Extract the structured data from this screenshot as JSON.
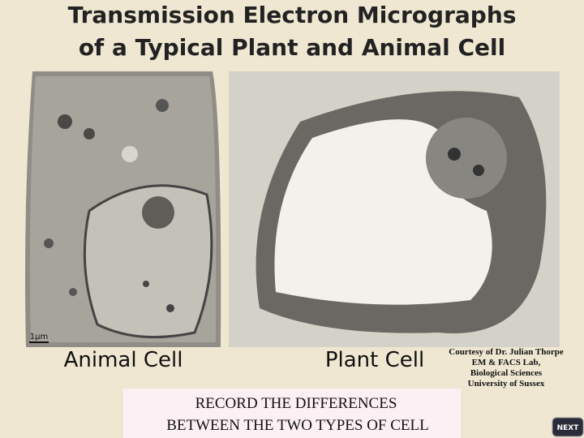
{
  "header": {
    "title_lines": [
      "Transmission Electron Micrographs",
      "of a Typical Plant and Animal Cell"
    ]
  },
  "images": [
    {
      "label": "Animal Cell",
      "scale_bar": "1µm"
    },
    {
      "label": "Plant Cell"
    }
  ],
  "credit": [
    "Courtesy of Dr. Julian Thorpe",
    "EM & FACS Lab,",
    "Biological Sciences",
    "University of Sussex"
  ],
  "instruction": [
    "RECORD THE DIFFERENCES",
    "BETWEEN THE TWO TYPES OF CELL"
  ],
  "button": {
    "label": "NEXT"
  }
}
